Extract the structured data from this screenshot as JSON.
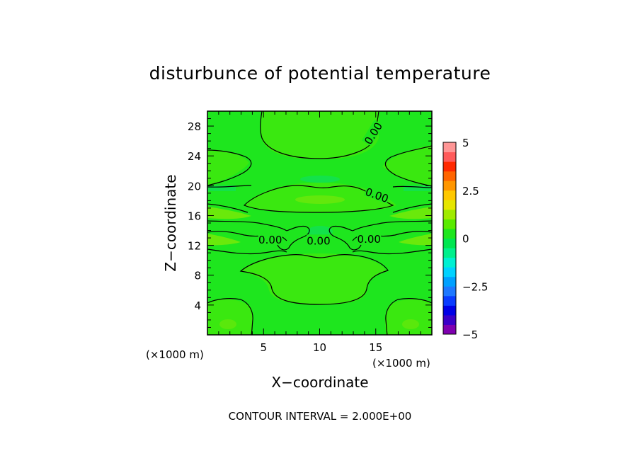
{
  "chart_data": {
    "type": "contour",
    "title": "disturbunce of potential temperature",
    "xlabel": "X−coordinate",
    "ylabel": "Z−coordinate",
    "x_unit_left": "(×1000 m)",
    "x_unit_right": "(×1000 m)",
    "xlim": [
      0,
      20
    ],
    "ylim": [
      0,
      30
    ],
    "xticks": [
      5,
      10,
      15
    ],
    "yticks": [
      4,
      8,
      12,
      16,
      20,
      24,
      28
    ],
    "contour_labels": [
      {
        "x": 14.8,
        "y": 27.0,
        "text": "0.00",
        "angle": -58
      },
      {
        "x": 15.1,
        "y": 18.7,
        "text": "0.00",
        "angle": 20
      },
      {
        "x": 5.6,
        "y": 12.7,
        "text": "0.00",
        "angle": 0
      },
      {
        "x": 9.9,
        "y": 12.6,
        "text": "0.00",
        "angle": 0
      },
      {
        "x": 14.4,
        "y": 12.8,
        "text": "0.00",
        "angle": 0
      }
    ],
    "colorbar": {
      "min": -5,
      "max": 5,
      "tick_labels": [
        "5",
        "2.5",
        "0",
        "−2.5",
        "−5"
      ],
      "tick_values": [
        5,
        2.5,
        0,
        -2.5,
        -5
      ],
      "colors": [
        "#7f00b0",
        "#3a00c8",
        "#0000e6",
        "#0a3cff",
        "#1e78ff",
        "#00a0ff",
        "#00d2ff",
        "#00f0d2",
        "#00f08c",
        "#00e650",
        "#1ee61e",
        "#5aeb00",
        "#a0eb00",
        "#e6e600",
        "#ffc800",
        "#ff9600",
        "#ff6400",
        "#ff2800",
        "#ff5a5a",
        "#ff9696"
      ]
    },
    "footer": "CONTOUR INTERVAL = 2.000E+00"
  }
}
